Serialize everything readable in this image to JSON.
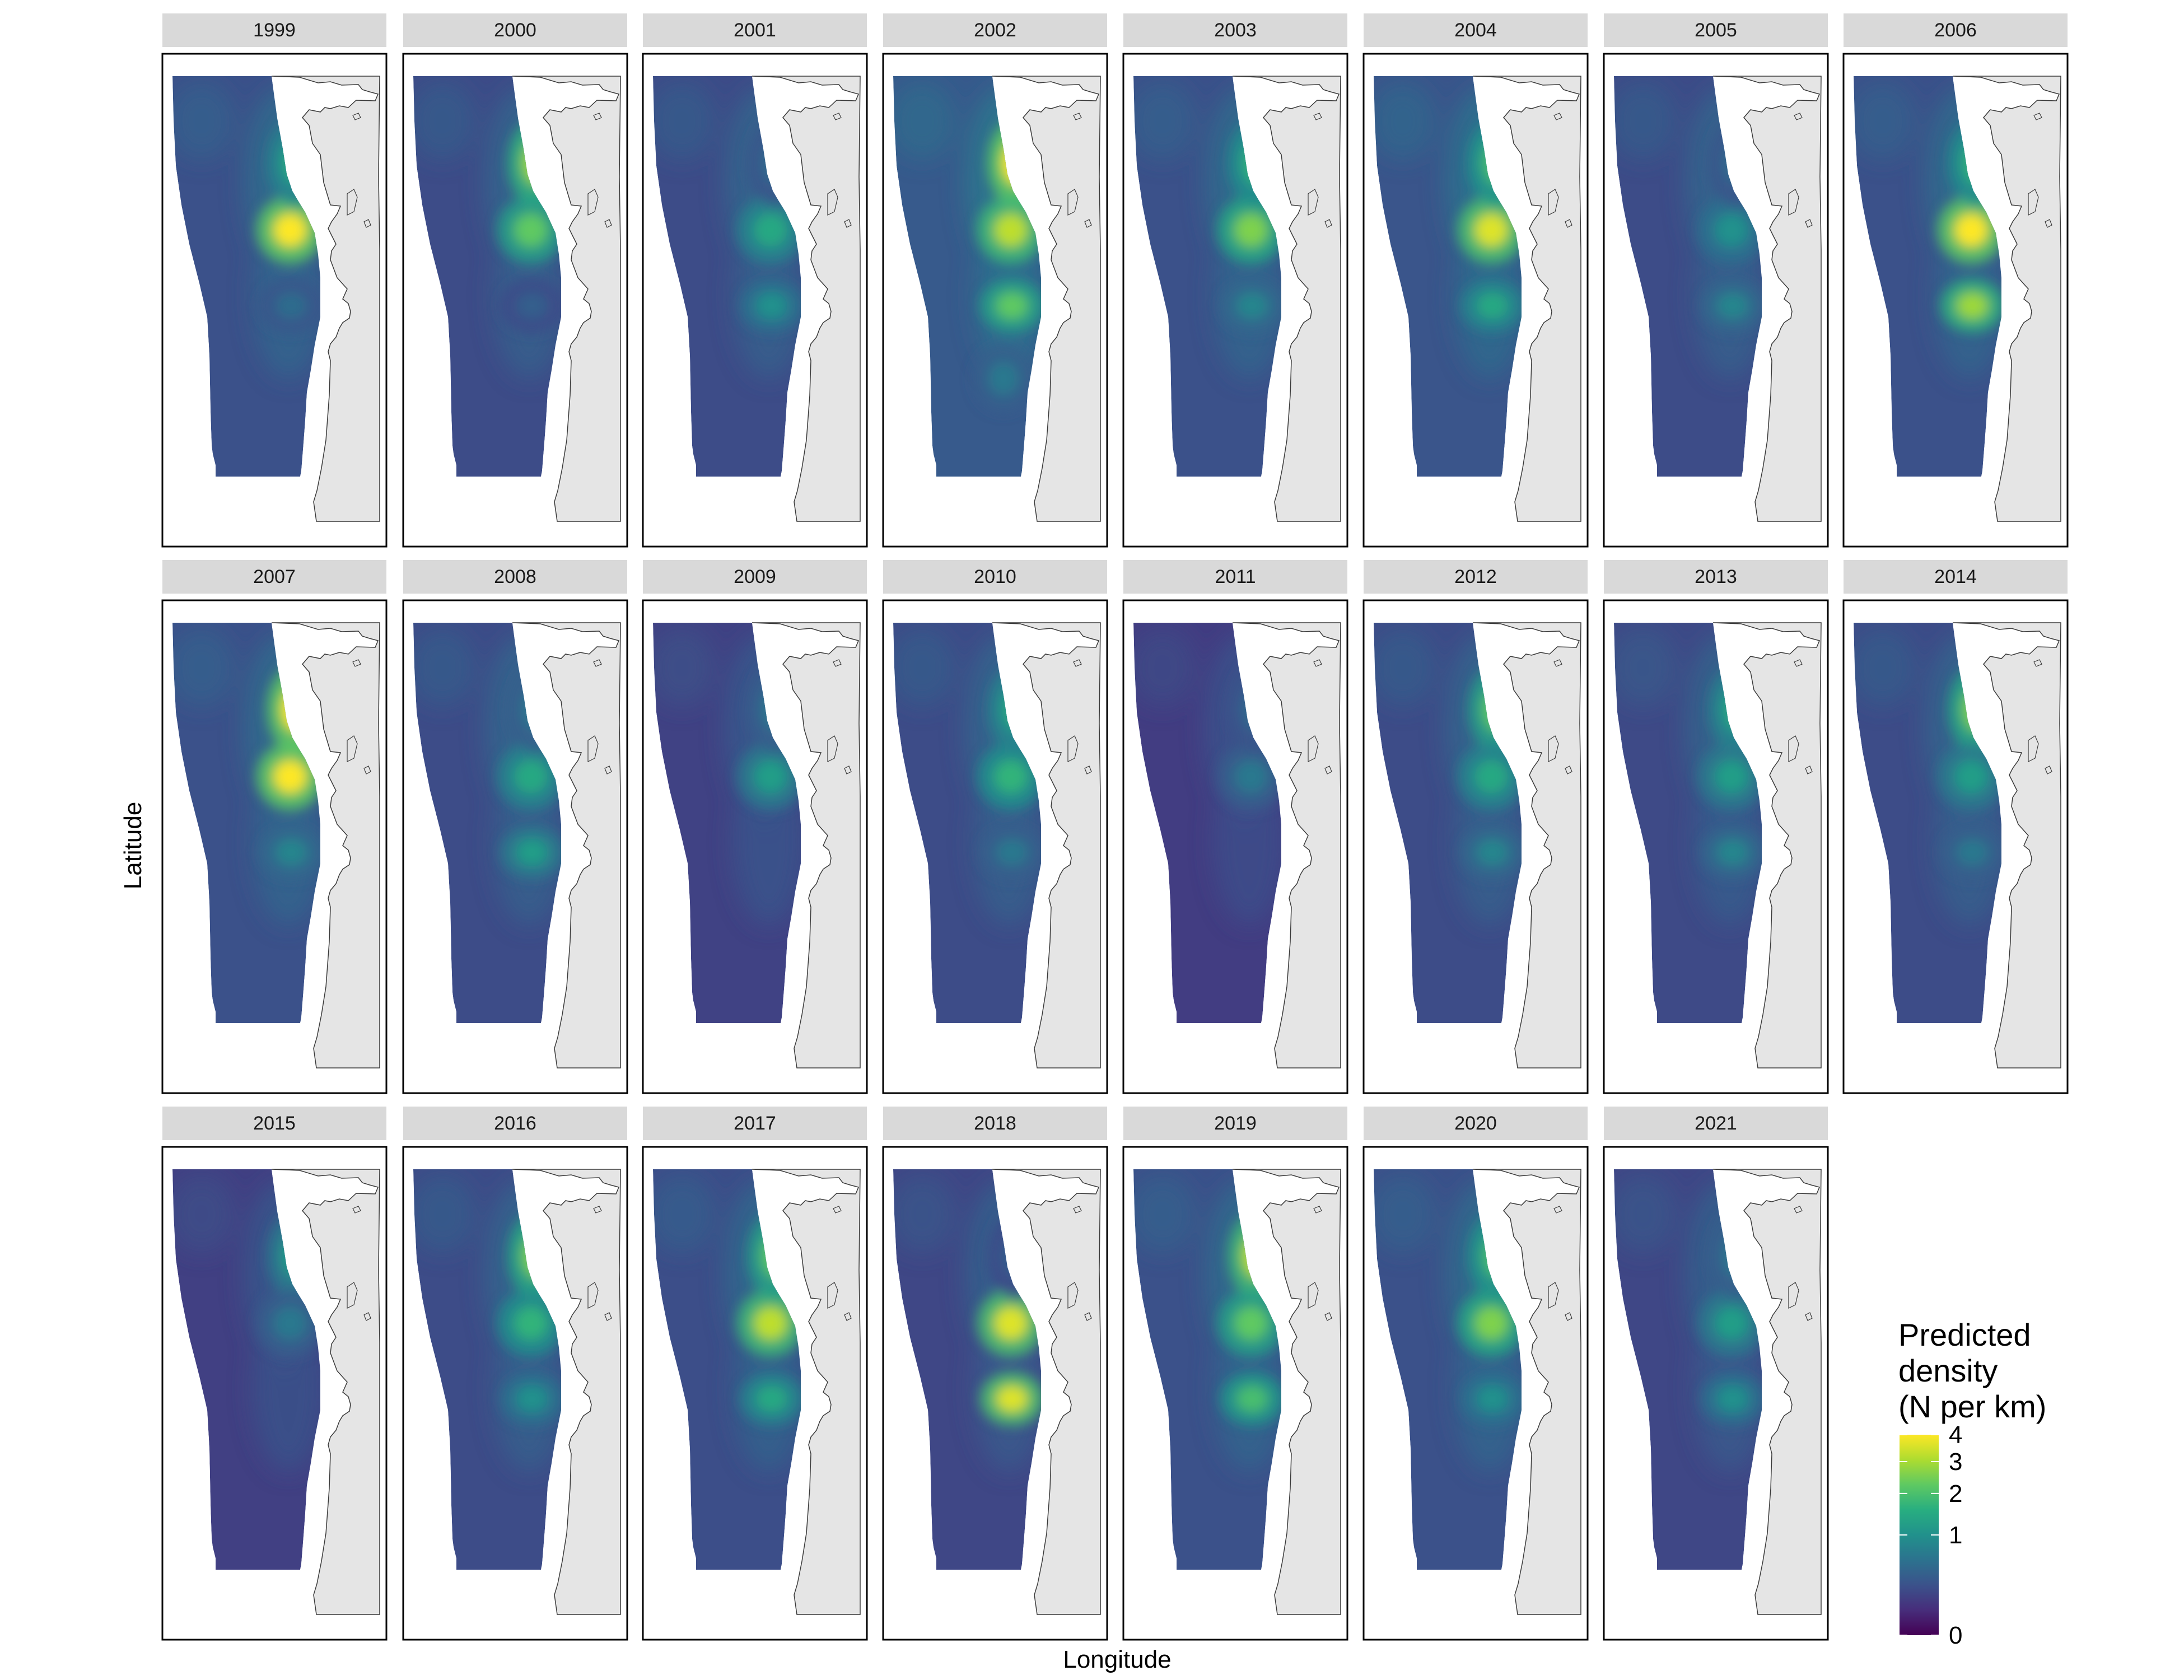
{
  "chart_data": {
    "type": "heatmap",
    "xlabel": "Longitude",
    "ylabel": "Latitude",
    "colorbar": {
      "title": [
        "Predicted",
        "density",
        "(N per km)"
      ],
      "ticks": [
        {
          "label": "4",
          "value": 4
        },
        {
          "label": "3",
          "value": 3
        },
        {
          "label": "2",
          "value": 2
        },
        {
          "label": "1",
          "value": 1
        },
        {
          "label": "0",
          "value": 0
        }
      ],
      "colors": [
        "#440154",
        "#472d7b",
        "#3b528b",
        "#2c728e",
        "#21918c",
        "#28ae80",
        "#5ec962",
        "#addc30",
        "#fde725"
      ]
    },
    "panels": [
      {
        "year": "1999",
        "mean_level": 0.55,
        "hotspots": [
          {
            "v": 1.0,
            "loc": "central-upper"
          },
          {
            "v": 0.6,
            "loc": "north"
          },
          {
            "v": 0.35,
            "loc": "central-lower"
          }
        ]
      },
      {
        "year": "2000",
        "mean_level": 0.5,
        "hotspots": [
          {
            "v": 0.85,
            "loc": "north"
          },
          {
            "v": 0.75,
            "loc": "central-upper"
          },
          {
            "v": 0.3,
            "loc": "central-lower"
          }
        ]
      },
      {
        "year": "2001",
        "mean_level": 0.5,
        "hotspots": [
          {
            "v": 0.6,
            "loc": "central-upper"
          },
          {
            "v": 0.5,
            "loc": "central-lower"
          },
          {
            "v": 0.35,
            "loc": "north"
          }
        ]
      },
      {
        "year": "2002",
        "mean_level": 0.65,
        "hotspots": [
          {
            "v": 1.0,
            "loc": "north"
          },
          {
            "v": 0.9,
            "loc": "central-upper"
          },
          {
            "v": 0.75,
            "loc": "central-lower"
          },
          {
            "v": 0.4,
            "loc": "south"
          }
        ]
      },
      {
        "year": "2003",
        "mean_level": 0.55,
        "hotspots": [
          {
            "v": 0.8,
            "loc": "central-upper"
          },
          {
            "v": 0.65,
            "loc": "north"
          },
          {
            "v": 0.45,
            "loc": "central-lower"
          }
        ]
      },
      {
        "year": "2004",
        "mean_level": 0.6,
        "hotspots": [
          {
            "v": 0.95,
            "loc": "central-upper"
          },
          {
            "v": 0.7,
            "loc": "north"
          },
          {
            "v": 0.6,
            "loc": "central-lower"
          }
        ]
      },
      {
        "year": "2005",
        "mean_level": 0.5,
        "hotspots": [
          {
            "v": 0.5,
            "loc": "central-upper"
          },
          {
            "v": 0.45,
            "loc": "central-lower"
          },
          {
            "v": 0.35,
            "loc": "north"
          }
        ]
      },
      {
        "year": "2006",
        "mean_level": 0.55,
        "hotspots": [
          {
            "v": 1.0,
            "loc": "central-upper"
          },
          {
            "v": 0.85,
            "loc": "central-lower"
          },
          {
            "v": 0.65,
            "loc": "north"
          }
        ]
      },
      {
        "year": "2007",
        "mean_level": 0.55,
        "hotspots": [
          {
            "v": 1.0,
            "loc": "north"
          },
          {
            "v": 1.0,
            "loc": "central-upper"
          },
          {
            "v": 0.45,
            "loc": "central-lower"
          }
        ]
      },
      {
        "year": "2008",
        "mean_level": 0.5,
        "hotspots": [
          {
            "v": 0.6,
            "loc": "central-upper"
          },
          {
            "v": 0.55,
            "loc": "central-lower"
          },
          {
            "v": 0.4,
            "loc": "north"
          }
        ]
      },
      {
        "year": "2009",
        "mean_level": 0.4,
        "hotspots": [
          {
            "v": 0.55,
            "loc": "central-upper"
          },
          {
            "v": 0.4,
            "loc": "north"
          }
        ]
      },
      {
        "year": "2010",
        "mean_level": 0.5,
        "hotspots": [
          {
            "v": 0.65,
            "loc": "central-upper"
          },
          {
            "v": 0.6,
            "loc": "north"
          },
          {
            "v": 0.4,
            "loc": "central-lower"
          }
        ]
      },
      {
        "year": "2011",
        "mean_level": 0.35,
        "hotspots": [
          {
            "v": 0.4,
            "loc": "central-upper"
          },
          {
            "v": 0.35,
            "loc": "north"
          }
        ]
      },
      {
        "year": "2012",
        "mean_level": 0.5,
        "hotspots": [
          {
            "v": 0.75,
            "loc": "north"
          },
          {
            "v": 0.6,
            "loc": "central-upper"
          },
          {
            "v": 0.45,
            "loc": "central-lower"
          }
        ]
      },
      {
        "year": "2013",
        "mean_level": 0.48,
        "hotspots": [
          {
            "v": 0.6,
            "loc": "north"
          },
          {
            "v": 0.55,
            "loc": "central-upper"
          },
          {
            "v": 0.45,
            "loc": "central-lower"
          }
        ]
      },
      {
        "year": "2014",
        "mean_level": 0.5,
        "hotspots": [
          {
            "v": 0.8,
            "loc": "north"
          },
          {
            "v": 0.55,
            "loc": "central-upper"
          },
          {
            "v": 0.4,
            "loc": "central-lower"
          }
        ]
      },
      {
        "year": "2015",
        "mean_level": 0.38,
        "hotspots": [
          {
            "v": 0.55,
            "loc": "north"
          },
          {
            "v": 0.4,
            "loc": "central-upper"
          }
        ]
      },
      {
        "year": "2016",
        "mean_level": 0.5,
        "hotspots": [
          {
            "v": 0.8,
            "loc": "north"
          },
          {
            "v": 0.65,
            "loc": "central-upper"
          },
          {
            "v": 0.5,
            "loc": "central-lower"
          }
        ]
      },
      {
        "year": "2017",
        "mean_level": 0.52,
        "hotspots": [
          {
            "v": 0.9,
            "loc": "central-upper"
          },
          {
            "v": 0.75,
            "loc": "north"
          },
          {
            "v": 0.6,
            "loc": "central-lower"
          }
        ]
      },
      {
        "year": "2018",
        "mean_level": 0.45,
        "hotspots": [
          {
            "v": 0.95,
            "loc": "central-upper"
          },
          {
            "v": 0.95,
            "loc": "central-lower"
          },
          {
            "v": 0.3,
            "loc": "north"
          }
        ]
      },
      {
        "year": "2019",
        "mean_level": 0.55,
        "hotspots": [
          {
            "v": 0.9,
            "loc": "north"
          },
          {
            "v": 0.75,
            "loc": "central-upper"
          },
          {
            "v": 0.7,
            "loc": "central-lower"
          }
        ]
      },
      {
        "year": "2020",
        "mean_level": 0.55,
        "hotspots": [
          {
            "v": 0.8,
            "loc": "central-upper"
          },
          {
            "v": 0.7,
            "loc": "north"
          },
          {
            "v": 0.5,
            "loc": "central-lower"
          }
        ]
      },
      {
        "year": "2021",
        "mean_level": 0.45,
        "hotspots": [
          {
            "v": 0.55,
            "loc": "central-upper"
          },
          {
            "v": 0.5,
            "loc": "central-lower"
          },
          {
            "v": 0.4,
            "loc": "north"
          }
        ]
      }
    ]
  }
}
